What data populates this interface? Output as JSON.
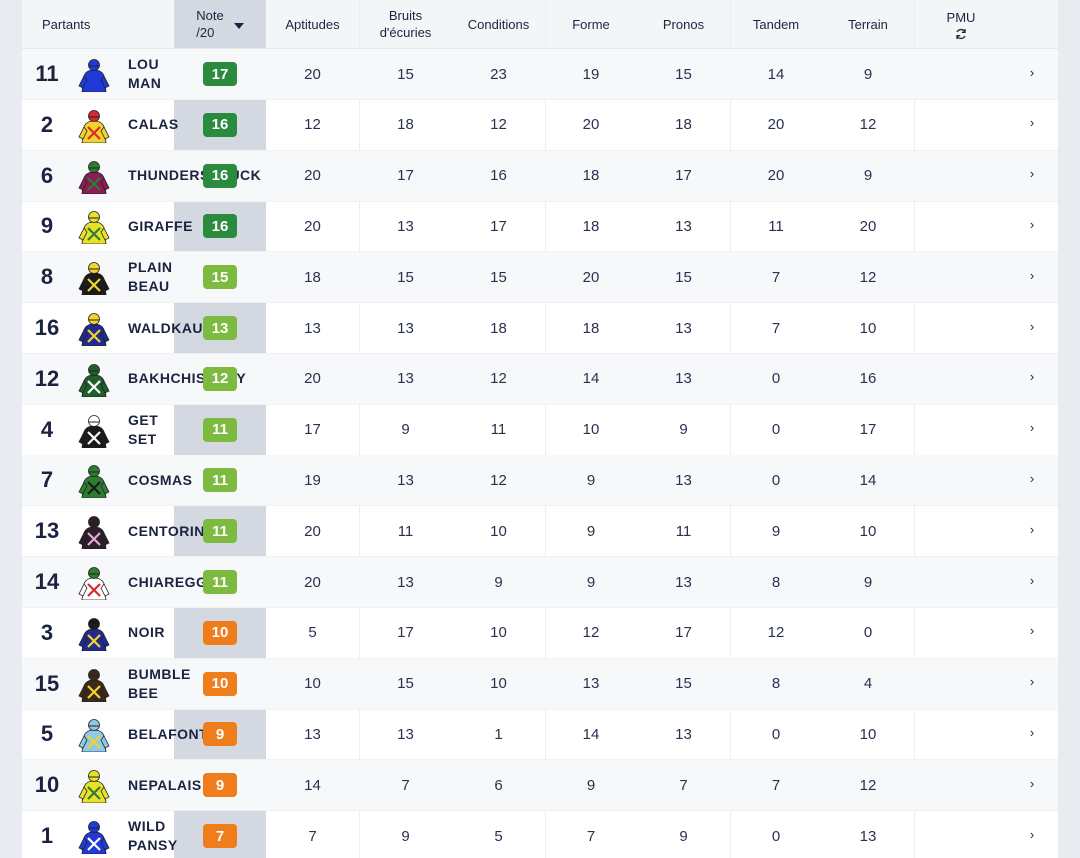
{
  "header": {
    "partants": "Partants",
    "note_line1": "Note",
    "note_line2": "/20",
    "aptitudes": "Aptitudes",
    "bruits_line1": "Bruits",
    "bruits_line2": "d'écuries",
    "conditions": "Conditions",
    "forme": "Forme",
    "pronos": "Pronos",
    "tandem": "Tandem",
    "terrain": "Terrain",
    "pmu": "PMU",
    "pmu_icon": "refresh-icon",
    "sort_icon": "caret-down-icon"
  },
  "colors": {
    "note_high": "#2a8a3e",
    "note_mid": "#7cbb3f",
    "note_low": "#f07d1b",
    "note_band": "#d4d9e1"
  },
  "rows": [
    {
      "num": "11",
      "name": "LOU\nMAN",
      "note": "17",
      "level": "high",
      "silk": {
        "body": "#1f3ad6",
        "cap": "#1f3ad6",
        "accent": "#1f3ad6"
      },
      "aptitudes": "20",
      "bruits": "15",
      "conditions": "23",
      "forme": "19",
      "pronos": "15",
      "tandem": "14",
      "terrain": "9"
    },
    {
      "num": "2",
      "name": "CALAS",
      "note": "16",
      "level": "high",
      "silk": {
        "body": "#f3d22b",
        "cap": "#d92b2b",
        "accent": "#d92b2b"
      },
      "aptitudes": "12",
      "bruits": "18",
      "conditions": "12",
      "forme": "20",
      "pronos": "18",
      "tandem": "20",
      "terrain": "12"
    },
    {
      "num": "6",
      "name": "THUNDERSTRUCK",
      "note": "16",
      "level": "high",
      "silk": {
        "body": "#8a1d55",
        "cap": "#2e7d32",
        "accent": "#2e7d32"
      },
      "aptitudes": "20",
      "bruits": "17",
      "conditions": "16",
      "forme": "18",
      "pronos": "17",
      "tandem": "20",
      "terrain": "9"
    },
    {
      "num": "9",
      "name": "GIRAFFE",
      "note": "16",
      "level": "high",
      "silk": {
        "body": "#e8e12a",
        "cap": "#e8e12a",
        "accent": "#2e7d32"
      },
      "aptitudes": "20",
      "bruits": "13",
      "conditions": "17",
      "forme": "18",
      "pronos": "13",
      "tandem": "11",
      "terrain": "20"
    },
    {
      "num": "8",
      "name": "PLAIN\nBEAU",
      "note": "15",
      "level": "mid",
      "silk": {
        "body": "#1a1a1a",
        "cap": "#f3d22b",
        "accent": "#f3d22b"
      },
      "aptitudes": "18",
      "bruits": "15",
      "conditions": "15",
      "forme": "20",
      "pronos": "15",
      "tandem": "7",
      "terrain": "12"
    },
    {
      "num": "16",
      "name": "WALDKAUZ",
      "note": "13",
      "level": "mid",
      "silk": {
        "body": "#1f2b8f",
        "cap": "#f3d22b",
        "accent": "#f3d22b"
      },
      "aptitudes": "13",
      "bruits": "13",
      "conditions": "18",
      "forme": "18",
      "pronos": "13",
      "tandem": "7",
      "terrain": "10"
    },
    {
      "num": "12",
      "name": "BAKHCHISARAY",
      "note": "12",
      "level": "mid",
      "silk": {
        "body": "#1f5f2a",
        "cap": "#1f5f2a",
        "accent": "#ffffff"
      },
      "aptitudes": "20",
      "bruits": "13",
      "conditions": "12",
      "forme": "14",
      "pronos": "13",
      "tandem": "0",
      "terrain": "16"
    },
    {
      "num": "4",
      "name": "GET\nSET",
      "note": "11",
      "level": "mid",
      "silk": {
        "body": "#1a1a1a",
        "cap": "#ffffff",
        "accent": "#ffffff"
      },
      "aptitudes": "17",
      "bruits": "9",
      "conditions": "11",
      "forme": "10",
      "pronos": "9",
      "tandem": "0",
      "terrain": "17"
    },
    {
      "num": "7",
      "name": "COSMAS",
      "note": "11",
      "level": "mid",
      "silk": {
        "body": "#2e7d32",
        "cap": "#2e7d32",
        "accent": "#1a1a1a"
      },
      "aptitudes": "19",
      "bruits": "13",
      "conditions": "12",
      "forme": "9",
      "pronos": "13",
      "tandem": "0",
      "terrain": "14"
    },
    {
      "num": "13",
      "name": "CENTORINA",
      "note": "11",
      "level": "mid",
      "silk": {
        "body": "#2a1f2a",
        "cap": "#2a1f2a",
        "accent": "#e7a6d8"
      },
      "aptitudes": "20",
      "bruits": "11",
      "conditions": "10",
      "forme": "9",
      "pronos": "11",
      "tandem": "9",
      "terrain": "10"
    },
    {
      "num": "14",
      "name": "CHIAREGGIO",
      "note": "11",
      "level": "mid",
      "silk": {
        "body": "#ffffff",
        "cap": "#2e7d32",
        "accent": "#d92b2b"
      },
      "aptitudes": "20",
      "bruits": "13",
      "conditions": "9",
      "forme": "9",
      "pronos": "13",
      "tandem": "8",
      "terrain": "9"
    },
    {
      "num": "3",
      "name": "NOIR",
      "note": "10",
      "level": "low",
      "silk": {
        "body": "#1f2b8f",
        "cap": "#1a1a1a",
        "accent": "#f3d22b"
      },
      "aptitudes": "5",
      "bruits": "17",
      "conditions": "10",
      "forme": "12",
      "pronos": "17",
      "tandem": "12",
      "terrain": "0"
    },
    {
      "num": "15",
      "name": "BUMBLE\nBEE",
      "note": "10",
      "level": "low",
      "silk": {
        "body": "#3a2a1a",
        "cap": "#3a2a1a",
        "accent": "#f3d22b"
      },
      "aptitudes": "10",
      "bruits": "15",
      "conditions": "10",
      "forme": "13",
      "pronos": "15",
      "tandem": "8",
      "terrain": "4"
    },
    {
      "num": "5",
      "name": "BELAFONTE",
      "note": "9",
      "level": "low",
      "silk": {
        "body": "#8fc9e8",
        "cap": "#8fc9e8",
        "accent": "#f3d22b"
      },
      "aptitudes": "13",
      "bruits": "13",
      "conditions": "1",
      "forme": "14",
      "pronos": "13",
      "tandem": "0",
      "terrain": "10"
    },
    {
      "num": "10",
      "name": "NEPALAIS",
      "note": "9",
      "level": "low",
      "silk": {
        "body": "#e8e12a",
        "cap": "#e8e12a",
        "accent": "#2e7d32"
      },
      "aptitudes": "14",
      "bruits": "7",
      "conditions": "6",
      "forme": "9",
      "pronos": "7",
      "tandem": "7",
      "terrain": "12"
    },
    {
      "num": "1",
      "name": "WILD\nPANSY",
      "note": "7",
      "level": "low",
      "silk": {
        "body": "#1f3ad6",
        "cap": "#1f3ad6",
        "accent": "#ffffff"
      },
      "aptitudes": "7",
      "bruits": "9",
      "conditions": "5",
      "forme": "7",
      "pronos": "9",
      "tandem": "0",
      "terrain": "13"
    }
  ],
  "row_chevron": "›"
}
